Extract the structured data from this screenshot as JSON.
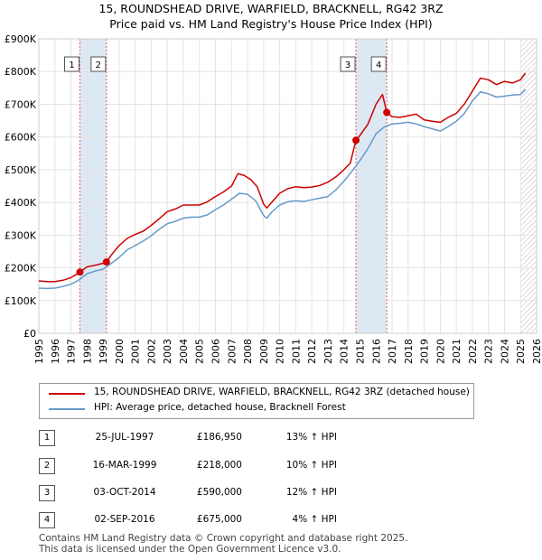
{
  "chart_data": {
    "type": "line",
    "title": "15, ROUNDSHEAD DRIVE, WARFIELD, BRACKNELL, RG42 3RZ",
    "subtitle": "Price paid vs. HM Land Registry's House Price Index (HPI)",
    "x_range": [
      1995,
      2026
    ],
    "ylim": [
      0,
      900000
    ],
    "y_ticks": [
      0,
      100000,
      200000,
      300000,
      400000,
      500000,
      600000,
      700000,
      800000,
      900000
    ],
    "y_tick_labels": [
      "£0",
      "£100K",
      "£200K",
      "£300K",
      "£400K",
      "£500K",
      "£600K",
      "£700K",
      "£800K",
      "£900K"
    ],
    "x_ticks": [
      1995,
      1996,
      1997,
      1998,
      1999,
      2000,
      2001,
      2002,
      2003,
      2004,
      2005,
      2006,
      2007,
      2008,
      2009,
      2010,
      2011,
      2012,
      2013,
      2014,
      2015,
      2016,
      2017,
      2018,
      2019,
      2020,
      2021,
      2022,
      2023,
      2024,
      2025,
      2026
    ],
    "x_tick_labels": [
      "1995",
      "1996",
      "1997",
      "1998",
      "1999",
      "2000",
      "2001",
      "2002",
      "2003",
      "2004",
      "2005",
      "2006",
      "2007",
      "2008",
      "2009",
      "2010",
      "2011",
      "2012",
      "2013",
      "2014",
      "2015",
      "2016",
      "2017",
      "2018",
      "2019",
      "2020",
      "2021",
      "2022",
      "2023",
      "2024",
      "2025",
      "2026"
    ],
    "grid": true,
    "colors": {
      "price": "#cc0000",
      "hpi": "#6699cc",
      "shade": "#dde8f5",
      "vline": "#e06060",
      "hatch": "#888888",
      "grid": "#e4e4e4"
    },
    "series": [
      {
        "name": "15, ROUNDSHEAD DRIVE, WARFIELD, BRACKNELL, RG42 3RZ (detached house)",
        "x": [
          1995.0,
          1995.5,
          1996.0,
          1996.5,
          1997.0,
          1997.56,
          1998.0,
          1998.5,
          1999.0,
          1999.21,
          1999.6,
          2000.0,
          2000.5,
          2001.0,
          2001.5,
          2002.0,
          2002.5,
          2003.0,
          2003.5,
          2004.0,
          2004.5,
          2005.0,
          2005.5,
          2006.0,
          2006.5,
          2007.0,
          2007.4,
          2007.8,
          2008.2,
          2008.6,
          2009.0,
          2009.2,
          2009.5,
          2010.0,
          2010.5,
          2011.0,
          2011.5,
          2012.0,
          2012.5,
          2013.0,
          2013.5,
          2014.0,
          2014.4,
          2014.75,
          2015.0,
          2015.5,
          2016.0,
          2016.4,
          2016.67,
          2017.0,
          2017.5,
          2018.0,
          2018.5,
          2019.0,
          2019.5,
          2020.0,
          2020.5,
          2021.0,
          2021.5,
          2022.0,
          2022.5,
          2023.0,
          2023.5,
          2024.0,
          2024.5,
          2025.0,
          2025.3
        ],
        "values": [
          160000,
          158000,
          158000,
          162000,
          170000,
          186950,
          203000,
          208000,
          214000,
          218000,
          245000,
          268000,
          290000,
          302000,
          312000,
          330000,
          350000,
          372000,
          380000,
          392000,
          392000,
          392000,
          402000,
          418000,
          432000,
          450000,
          488000,
          482000,
          470000,
          448000,
          395000,
          383000,
          400000,
          428000,
          442000,
          448000,
          445000,
          447000,
          452000,
          462000,
          478000,
          500000,
          520000,
          590000,
          605000,
          640000,
          700000,
          730000,
          675000,
          662000,
          660000,
          665000,
          670000,
          652000,
          648000,
          645000,
          660000,
          672000,
          700000,
          740000,
          780000,
          775000,
          760000,
          770000,
          765000,
          775000,
          795000
        ]
      },
      {
        "name": "HPI: Average price, detached house, Bracknell Forest",
        "x": [
          1995.0,
          1995.5,
          1996.0,
          1996.5,
          1997.0,
          1997.5,
          1998.0,
          1998.5,
          1999.0,
          1999.5,
          2000.0,
          2000.5,
          2001.0,
          2001.5,
          2002.0,
          2002.5,
          2003.0,
          2003.5,
          2004.0,
          2004.5,
          2005.0,
          2005.5,
          2006.0,
          2006.5,
          2007.0,
          2007.5,
          2008.0,
          2008.5,
          2009.0,
          2009.2,
          2009.5,
          2010.0,
          2010.5,
          2011.0,
          2011.5,
          2012.0,
          2012.5,
          2013.0,
          2013.5,
          2014.0,
          2014.5,
          2015.0,
          2015.5,
          2016.0,
          2016.5,
          2017.0,
          2017.5,
          2018.0,
          2018.5,
          2019.0,
          2019.5,
          2020.0,
          2020.5,
          2021.0,
          2021.5,
          2022.0,
          2022.5,
          2023.0,
          2023.5,
          2024.0,
          2024.5,
          2025.0,
          2025.3
        ],
        "values": [
          138000,
          137000,
          138000,
          143000,
          150000,
          163000,
          182000,
          190000,
          196000,
          213000,
          232000,
          255000,
          268000,
          282000,
          298000,
          318000,
          335000,
          342000,
          352000,
          355000,
          355000,
          362000,
          378000,
          392000,
          410000,
          428000,
          425000,
          405000,
          360000,
          352000,
          370000,
          392000,
          402000,
          405000,
          403000,
          408000,
          413000,
          418000,
          438000,
          465000,
          495000,
          528000,
          565000,
          610000,
          630000,
          640000,
          642000,
          645000,
          640000,
          632000,
          625000,
          618000,
          632000,
          648000,
          672000,
          710000,
          738000,
          732000,
          722000,
          725000,
          728000,
          730000,
          745000
        ]
      }
    ],
    "sales": [
      {
        "num": "1",
        "x": 1997.56,
        "date": "25-JUL-1997",
        "price_label": "£186,950",
        "price": 186950,
        "hpi_change": "13% ↑ HPI"
      },
      {
        "num": "2",
        "x": 1999.21,
        "date": "16-MAR-1999",
        "price_label": "£218,000",
        "price": 218000,
        "hpi_change": "10% ↑ HPI"
      },
      {
        "num": "3",
        "x": 2014.75,
        "date": "03-OCT-2014",
        "price_label": "£590,000",
        "price": 590000,
        "hpi_change": "12% ↑ HPI"
      },
      {
        "num": "4",
        "x": 2016.67,
        "date": "02-SEP-2016",
        "price_label": "£675,000",
        "price": 675000,
        "hpi_change": "4% ↑ HPI"
      }
    ],
    "hatch_from": 2025.0
  },
  "legend": {
    "price_label": "15, ROUNDSHEAD DRIVE, WARFIELD, BRACKNELL, RG42 3RZ (detached house)",
    "hpi_label": "HPI: Average price, detached house, Bracknell Forest"
  },
  "footer": {
    "line1": "Contains HM Land Registry data © Crown copyright and database right 2025.",
    "line2": "This data is licensed under the Open Government Licence v3.0."
  }
}
